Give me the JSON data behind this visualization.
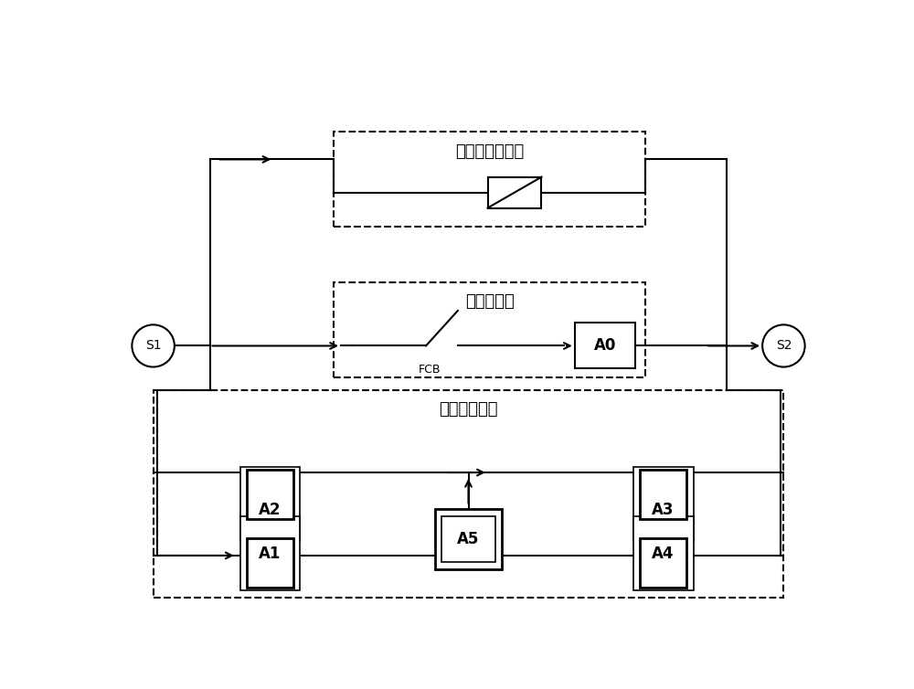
{
  "bg_color": "#ffffff",
  "line_color": "#000000",
  "s1_label": "S1",
  "s2_label": "S2",
  "overvoltage_label": "过电压限制电路",
  "main_circuit_label": "主电流电路",
  "transfer_circuit_label": "转移电流电路",
  "fcb_label": "FCB",
  "fig_width": 10.0,
  "fig_height": 7.54
}
